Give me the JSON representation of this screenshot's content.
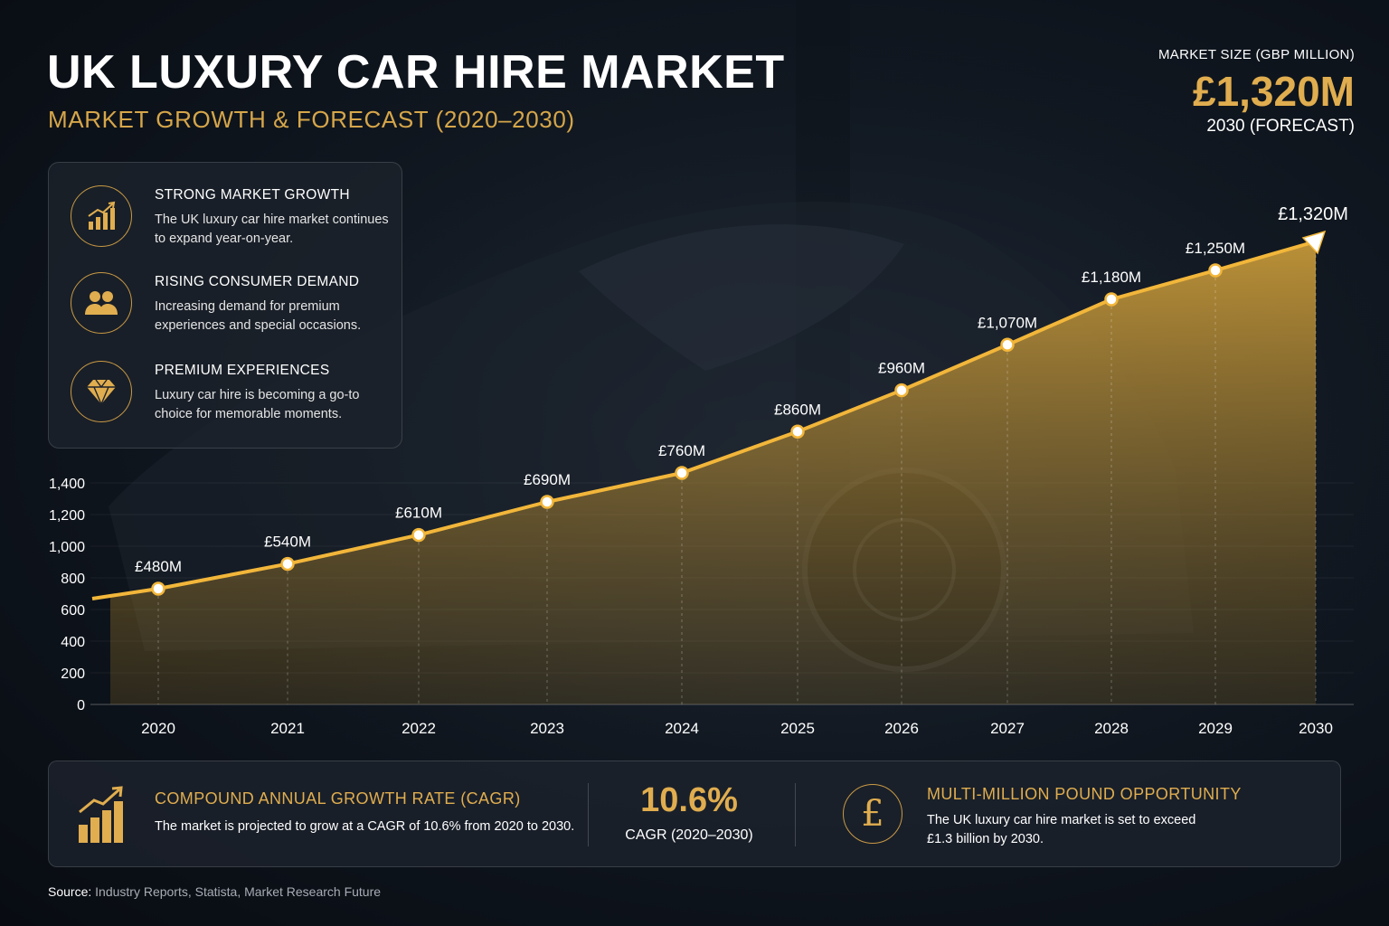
{
  "header": {
    "title": "UK LUXURY CAR HIRE MARKET",
    "subtitle": "MARKET GROWTH & FORECAST (2020–2030)"
  },
  "kpi": {
    "label": "MARKET SIZE (GBP MILLION)",
    "value": "£1,320M",
    "sub": "2030 (FORECAST)"
  },
  "drivers": [
    {
      "icon": "bar-growth-icon",
      "title": "STRONG MARKET GROWTH",
      "text": "The UK luxury car hire market continues to expand year-on-year."
    },
    {
      "icon": "people-icon",
      "title": "RISING CONSUMER DEMAND",
      "text": "Increasing demand for premium experiences and special occasions."
    },
    {
      "icon": "diamond-icon",
      "title": "PREMIUM EXPERIENCES",
      "text": "Luxury car hire is becoming a go-to choice for memorable moments."
    }
  ],
  "chart_data": {
    "type": "area",
    "x": [
      "2020",
      "2021",
      "2022",
      "2023",
      "2024",
      "2025",
      "2026",
      "2027",
      "2028",
      "2029",
      "2030"
    ],
    "values": [
      480,
      540,
      610,
      690,
      760,
      860,
      960,
      1070,
      1180,
      1250,
      1320
    ],
    "data_labels": [
      "£480M",
      "£540M",
      "£610M",
      "£690M",
      "£760M",
      "£860M",
      "£960M",
      "£1,070M",
      "£1,180M",
      "£1,250M",
      "£1,320M"
    ],
    "y_ticks": [
      "0",
      "200",
      "400",
      "600",
      "800",
      "1,000",
      "1,200",
      "1,400"
    ],
    "ylim": [
      0,
      1400
    ],
    "grid": true,
    "colors": {
      "line": "#f2b63a",
      "fill": "#c99a33",
      "marker": "#ffffff"
    }
  },
  "bottom": {
    "cagr_title": "COMPOUND ANNUAL GROWTH RATE (CAGR)",
    "cagr_text": "The market is projected to grow at a CAGR of 10.6% from 2020 to 2030.",
    "cagr_value": "10.6%",
    "cagr_sub": "CAGR (2020–2030)",
    "opp_title": "MULTI-MILLION POUND OPPORTUNITY",
    "opp_text": "The UK luxury car hire market is set to exceed £1.3 billion by 2030.",
    "pound_symbol": "£"
  },
  "source": {
    "label": "Source:",
    "text": "Industry Reports, Statista, Market Research Future"
  }
}
